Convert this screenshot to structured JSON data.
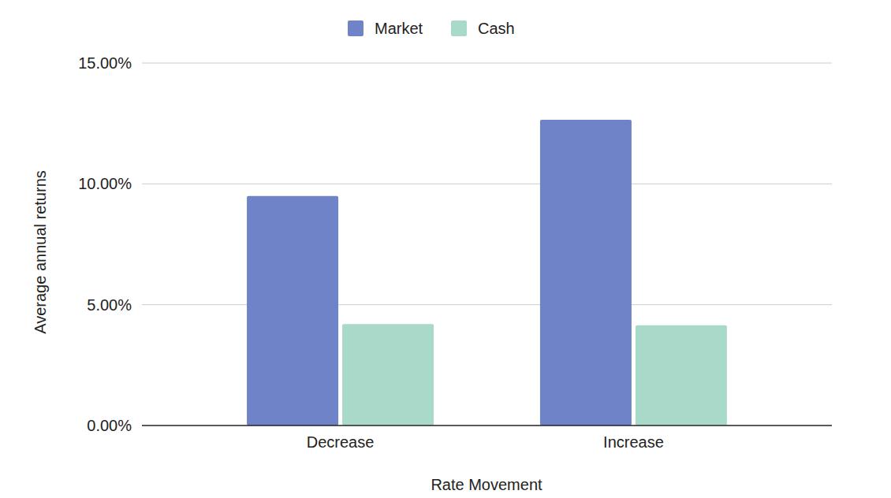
{
  "chart_data": {
    "type": "bar",
    "x_label": "Rate Movement",
    "y_label": "Average annual returns",
    "categories": [
      "Decrease",
      "Increase"
    ],
    "series": [
      {
        "name": "Market",
        "color": "#6f84c8",
        "values": [
          9.5,
          12.65
        ]
      },
      {
        "name": "Cash",
        "color": "#a9d9c9",
        "values": [
          4.2,
          4.15
        ]
      }
    ],
    "ylim": [
      0,
      15
    ],
    "yticks": [
      {
        "value": 0,
        "label": "0.00%"
      },
      {
        "value": 5,
        "label": "5.00%"
      },
      {
        "value": 10,
        "label": "10.00%"
      },
      {
        "value": 15,
        "label": "15.00%"
      }
    ],
    "grid": true,
    "legend": "top"
  }
}
